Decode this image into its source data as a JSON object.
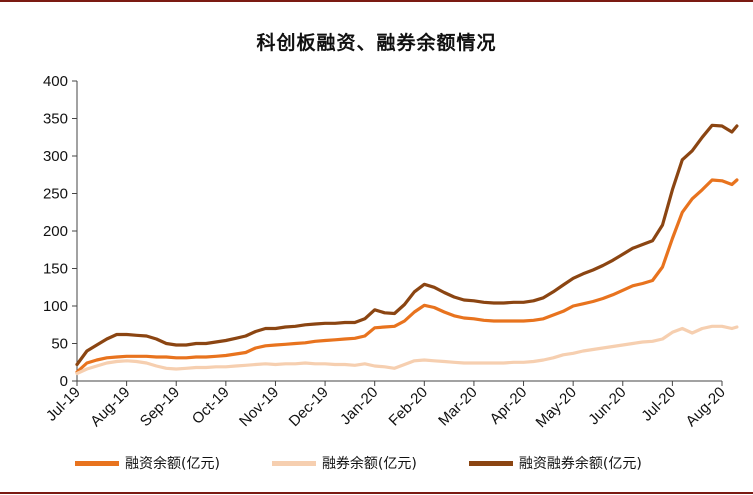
{
  "chart_data": {
    "type": "line",
    "title": "科创板融资、融券余额情况",
    "ylim": [
      0,
      400
    ],
    "yticks": [
      0,
      50,
      100,
      150,
      200,
      250,
      300,
      350,
      400
    ],
    "x_tick_labels": [
      "Jul-19",
      "Aug-19",
      "Sep-19",
      "Oct-19",
      "Nov-19",
      "Dec-19",
      "Jan-20",
      "Feb-20",
      "Mar-20",
      "Apr-20",
      "May-20",
      "Jun-20",
      "Jul-20",
      "Aug-20"
    ],
    "x_label": "",
    "y_label": "",
    "grid": false,
    "legend_position": "bottom",
    "series": [
      {
        "name": "融资余额(亿元)",
        "color": "#e8731e",
        "points": [
          [
            0,
            12
          ],
          [
            0.2,
            24
          ],
          [
            0.4,
            28
          ],
          [
            0.6,
            31
          ],
          [
            0.8,
            32
          ],
          [
            1.0,
            33
          ],
          [
            1.2,
            33
          ],
          [
            1.4,
            33
          ],
          [
            1.6,
            32
          ],
          [
            1.8,
            32
          ],
          [
            2.0,
            31
          ],
          [
            2.2,
            31
          ],
          [
            2.4,
            32
          ],
          [
            2.6,
            32
          ],
          [
            2.8,
            33
          ],
          [
            3.0,
            34
          ],
          [
            3.2,
            36
          ],
          [
            3.4,
            38
          ],
          [
            3.6,
            44
          ],
          [
            3.8,
            47
          ],
          [
            4.0,
            48
          ],
          [
            4.2,
            49
          ],
          [
            4.4,
            50
          ],
          [
            4.6,
            51
          ],
          [
            4.8,
            53
          ],
          [
            5.0,
            54
          ],
          [
            5.2,
            55
          ],
          [
            5.4,
            56
          ],
          [
            5.6,
            57
          ],
          [
            5.8,
            60
          ],
          [
            6.0,
            71
          ],
          [
            6.2,
            72
          ],
          [
            6.4,
            73
          ],
          [
            6.6,
            80
          ],
          [
            6.8,
            92
          ],
          [
            7.0,
            101
          ],
          [
            7.2,
            98
          ],
          [
            7.4,
            92
          ],
          [
            7.6,
            87
          ],
          [
            7.8,
            84
          ],
          [
            8.0,
            83
          ],
          [
            8.2,
            81
          ],
          [
            8.4,
            80
          ],
          [
            8.6,
            80
          ],
          [
            8.8,
            80
          ],
          [
            9.0,
            80
          ],
          [
            9.2,
            81
          ],
          [
            9.4,
            83
          ],
          [
            9.6,
            88
          ],
          [
            9.8,
            93
          ],
          [
            10.0,
            100
          ],
          [
            10.2,
            103
          ],
          [
            10.4,
            106
          ],
          [
            10.6,
            110
          ],
          [
            10.8,
            115
          ],
          [
            11.0,
            121
          ],
          [
            11.2,
            127
          ],
          [
            11.4,
            130
          ],
          [
            11.6,
            134
          ],
          [
            11.8,
            152
          ],
          [
            12.0,
            190
          ],
          [
            12.2,
            225
          ],
          [
            12.4,
            243
          ],
          [
            12.6,
            255
          ],
          [
            12.8,
            268
          ],
          [
            13.0,
            267
          ],
          [
            13.2,
            262
          ],
          [
            13.3,
            268
          ]
        ]
      },
      {
        "name": "融券余额(亿元)",
        "color": "#f6cfb0",
        "points": [
          [
            0,
            10
          ],
          [
            0.2,
            16
          ],
          [
            0.4,
            20
          ],
          [
            0.6,
            24
          ],
          [
            0.8,
            26
          ],
          [
            1.0,
            27
          ],
          [
            1.2,
            26
          ],
          [
            1.4,
            24
          ],
          [
            1.6,
            20
          ],
          [
            1.8,
            17
          ],
          [
            2.0,
            16
          ],
          [
            2.2,
            17
          ],
          [
            2.4,
            18
          ],
          [
            2.6,
            18
          ],
          [
            2.8,
            19
          ],
          [
            3.0,
            19
          ],
          [
            3.2,
            20
          ],
          [
            3.4,
            21
          ],
          [
            3.6,
            22
          ],
          [
            3.8,
            23
          ],
          [
            4.0,
            22
          ],
          [
            4.2,
            23
          ],
          [
            4.4,
            23
          ],
          [
            4.6,
            24
          ],
          [
            4.8,
            23
          ],
          [
            5.0,
            23
          ],
          [
            5.2,
            22
          ],
          [
            5.4,
            22
          ],
          [
            5.6,
            21
          ],
          [
            5.8,
            23
          ],
          [
            6.0,
            20
          ],
          [
            6.2,
            19
          ],
          [
            6.4,
            17
          ],
          [
            6.6,
            22
          ],
          [
            6.8,
            27
          ],
          [
            7.0,
            28
          ],
          [
            7.2,
            27
          ],
          [
            7.4,
            26
          ],
          [
            7.6,
            25
          ],
          [
            7.8,
            24
          ],
          [
            8.0,
            24
          ],
          [
            8.2,
            24
          ],
          [
            8.4,
            24
          ],
          [
            8.6,
            24
          ],
          [
            8.8,
            25
          ],
          [
            9.0,
            25
          ],
          [
            9.2,
            26
          ],
          [
            9.4,
            28
          ],
          [
            9.6,
            31
          ],
          [
            9.8,
            35
          ],
          [
            10.0,
            37
          ],
          [
            10.2,
            40
          ],
          [
            10.4,
            42
          ],
          [
            10.6,
            44
          ],
          [
            10.8,
            46
          ],
          [
            11.0,
            48
          ],
          [
            11.2,
            50
          ],
          [
            11.4,
            52
          ],
          [
            11.6,
            53
          ],
          [
            11.8,
            56
          ],
          [
            12.0,
            65
          ],
          [
            12.2,
            70
          ],
          [
            12.4,
            64
          ],
          [
            12.6,
            70
          ],
          [
            12.8,
            73
          ],
          [
            13.0,
            73
          ],
          [
            13.2,
            70
          ],
          [
            13.3,
            72
          ]
        ]
      },
      {
        "name": "融资融券余额(亿元)",
        "color": "#8b4512",
        "points": [
          [
            0,
            22
          ],
          [
            0.2,
            40
          ],
          [
            0.4,
            48
          ],
          [
            0.6,
            56
          ],
          [
            0.8,
            62
          ],
          [
            1.0,
            62
          ],
          [
            1.2,
            61
          ],
          [
            1.4,
            60
          ],
          [
            1.6,
            56
          ],
          [
            1.8,
            50
          ],
          [
            2.0,
            48
          ],
          [
            2.2,
            48
          ],
          [
            2.4,
            50
          ],
          [
            2.6,
            50
          ],
          [
            2.8,
            52
          ],
          [
            3.0,
            54
          ],
          [
            3.2,
            57
          ],
          [
            3.4,
            60
          ],
          [
            3.6,
            66
          ],
          [
            3.8,
            70
          ],
          [
            4.0,
            70
          ],
          [
            4.2,
            72
          ],
          [
            4.4,
            73
          ],
          [
            4.6,
            75
          ],
          [
            4.8,
            76
          ],
          [
            5.0,
            77
          ],
          [
            5.2,
            77
          ],
          [
            5.4,
            78
          ],
          [
            5.6,
            78
          ],
          [
            5.8,
            83
          ],
          [
            6.0,
            95
          ],
          [
            6.2,
            91
          ],
          [
            6.4,
            90
          ],
          [
            6.6,
            102
          ],
          [
            6.8,
            119
          ],
          [
            7.0,
            129
          ],
          [
            7.2,
            125
          ],
          [
            7.4,
            118
          ],
          [
            7.6,
            112
          ],
          [
            7.8,
            108
          ],
          [
            8.0,
            107
          ],
          [
            8.2,
            105
          ],
          [
            8.4,
            104
          ],
          [
            8.6,
            104
          ],
          [
            8.8,
            105
          ],
          [
            9.0,
            105
          ],
          [
            9.2,
            107
          ],
          [
            9.4,
            111
          ],
          [
            9.6,
            119
          ],
          [
            9.8,
            128
          ],
          [
            10.0,
            137
          ],
          [
            10.2,
            143
          ],
          [
            10.4,
            148
          ],
          [
            10.6,
            154
          ],
          [
            10.8,
            161
          ],
          [
            11.0,
            169
          ],
          [
            11.2,
            177
          ],
          [
            11.4,
            182
          ],
          [
            11.6,
            187
          ],
          [
            11.8,
            208
          ],
          [
            12.0,
            255
          ],
          [
            12.2,
            295
          ],
          [
            12.4,
            307
          ],
          [
            12.6,
            325
          ],
          [
            12.8,
            341
          ],
          [
            13.0,
            340
          ],
          [
            13.2,
            332
          ],
          [
            13.3,
            340
          ]
        ]
      }
    ]
  }
}
